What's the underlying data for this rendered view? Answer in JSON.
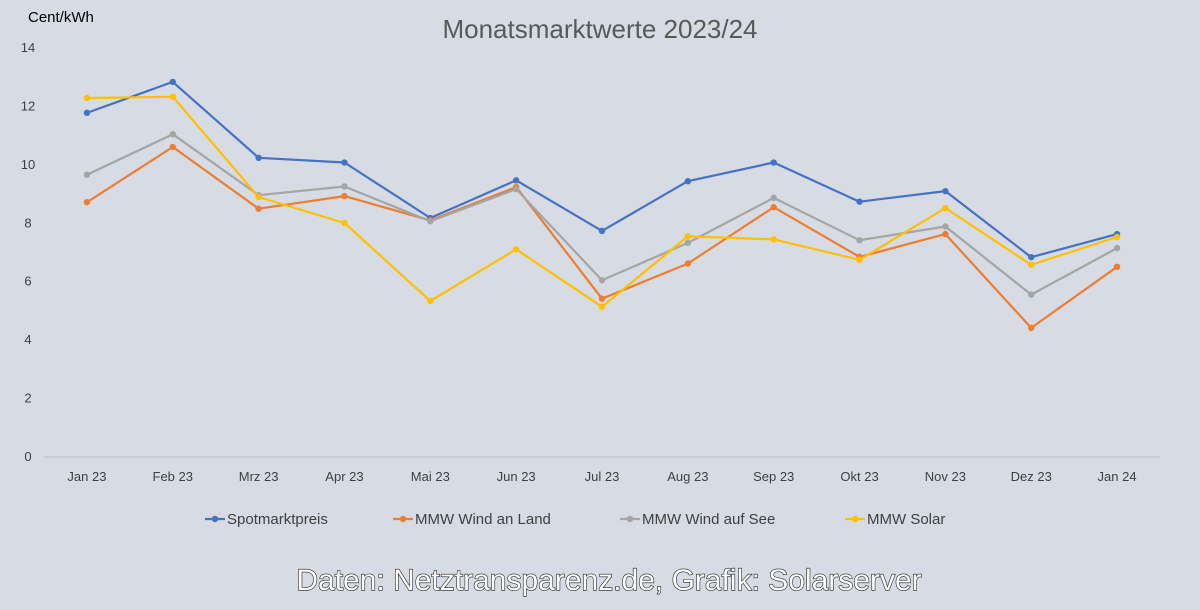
{
  "chart_data": {
    "type": "line",
    "title": "Monatsmarktwerte 2023/24",
    "ylabel": "Cent/kWh",
    "xlabel": "",
    "source": "Daten: Netztransparenz.de, Grafik: Solarserver",
    "ylim": [
      0,
      14
    ],
    "yticks": [
      0,
      2,
      4,
      6,
      8,
      10,
      12,
      14
    ],
    "grid": false,
    "legend_position": "bottom",
    "categories": [
      "Jan 23",
      "Feb 23",
      "Mrz 23",
      "Apr 23",
      "Mai 23",
      "Jun 23",
      "Jul 23",
      "Aug 23",
      "Sep 23",
      "Okt 23",
      "Nov 23",
      "Dez 23",
      "Jan 24"
    ],
    "series": [
      {
        "name": "Spotmarktpreis",
        "color": "#4472c4",
        "values": [
          11.78,
          12.84,
          10.24,
          10.08,
          8.18,
          9.47,
          7.74,
          9.44,
          10.08,
          8.74,
          9.1,
          6.84,
          7.63
        ]
      },
      {
        "name": "MMW Wind an Land",
        "color": "#ed7d31",
        "values": [
          8.72,
          10.61,
          8.5,
          8.93,
          8.1,
          9.24,
          5.42,
          6.62,
          8.55,
          6.85,
          7.63,
          4.42,
          6.51
        ]
      },
      {
        "name": "MMW Wind auf See",
        "color": "#a5a5a5",
        "values": [
          9.66,
          11.05,
          8.96,
          9.26,
          8.07,
          9.17,
          6.05,
          7.33,
          8.87,
          7.42,
          7.89,
          5.56,
          7.15
        ]
      },
      {
        "name": "MMW Solar",
        "color": "#ffc000",
        "values": [
          12.29,
          12.33,
          8.9,
          8.01,
          5.34,
          7.11,
          5.14,
          7.55,
          7.45,
          6.75,
          8.52,
          6.58,
          7.53
        ]
      }
    ]
  }
}
